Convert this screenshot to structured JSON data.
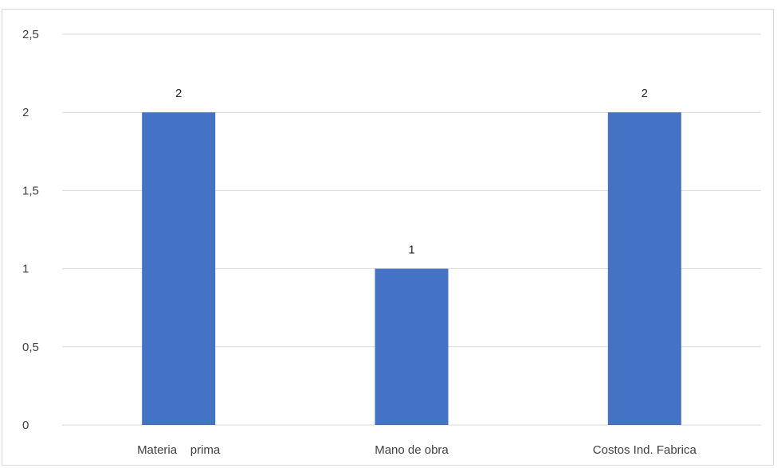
{
  "chart_data": {
    "type": "bar",
    "categories": [
      "Materia    prima",
      "Mano de obra",
      "Costos Ind. Fabrica"
    ],
    "values": [
      2,
      1,
      2
    ],
    "data_labels": [
      "2",
      "1",
      "2"
    ],
    "ylim": [
      0,
      2.5
    ],
    "y_ticks": [
      0,
      0.5,
      1,
      1.5,
      2,
      2.5
    ],
    "y_tick_labels": [
      "0",
      "0,5",
      "1",
      "1,5",
      "2",
      "2,5"
    ],
    "grid": true,
    "legend": "none",
    "title": "",
    "xlabel": "",
    "ylabel": "",
    "colors": {
      "bar": "#4472c4",
      "grid": "#d9d9d9",
      "text": "#404040"
    }
  }
}
